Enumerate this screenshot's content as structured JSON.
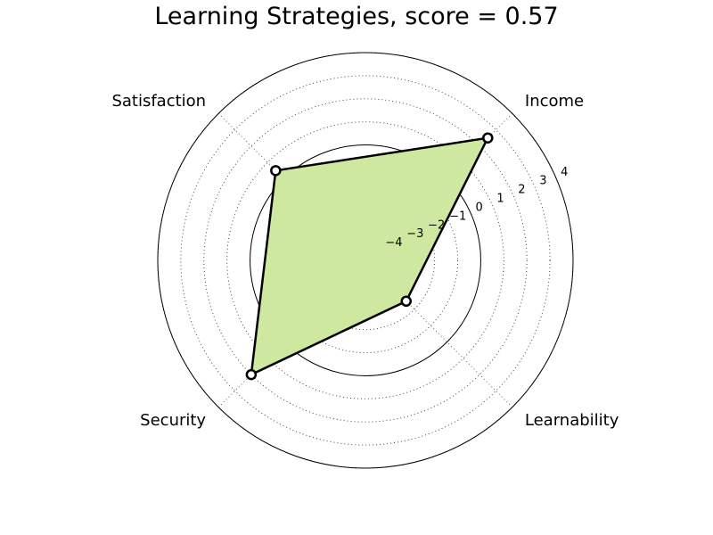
{
  "chart_data": {
    "type": "radar",
    "title": "Learning Strategies, score = 0.57",
    "axes": [
      "Income",
      "Learnability",
      "Security",
      "Satisfaction"
    ],
    "values": [
      2.5,
      -2.5,
      2.0,
      0.5
    ],
    "baseline": 0,
    "rlim": [
      -5,
      4
    ],
    "ticks": [
      -4,
      -3,
      -2,
      -1,
      0,
      1,
      2,
      3,
      4
    ],
    "tick_labels": [
      "−4",
      "−3",
      "−2",
      "−1",
      "0",
      "1",
      "2",
      "3",
      "4"
    ],
    "grid": true,
    "fill_color": "#cfe8a0",
    "line_color": "#000000"
  }
}
